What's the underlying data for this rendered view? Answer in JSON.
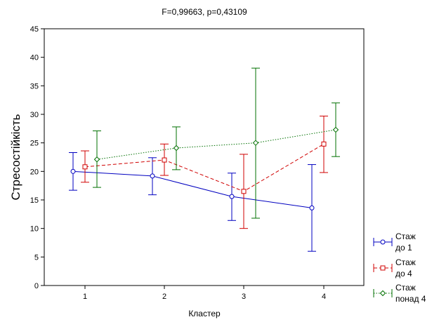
{
  "chart_data": {
    "type": "line",
    "title": "F=0,99663, p=0,43109",
    "xlabel": "Кластер",
    "ylabel": "Стресостійкість",
    "categories": [
      "1",
      "2",
      "3",
      "4"
    ],
    "ylim": [
      0,
      45
    ],
    "yticks": [
      "0",
      "5",
      "10",
      "15",
      "20",
      "25",
      "30",
      "35",
      "40",
      "45"
    ],
    "grid": false,
    "legend_position": "bottom-right",
    "error_bars": true,
    "series": [
      {
        "name": "Стаж до 1",
        "legend_lines": [
          "Стаж",
          "до 1"
        ],
        "color": "#0000c0",
        "marker": "circle",
        "line_style": "solid",
        "values": [
          20.0,
          19.2,
          15.6,
          13.6
        ],
        "lower": [
          16.7,
          15.9,
          11.4,
          6.0
        ],
        "upper": [
          23.3,
          22.4,
          19.7,
          21.2
        ]
      },
      {
        "name": "Стаж до 4",
        "legend_lines": [
          "Стаж",
          "до 4"
        ],
        "color": "#d00000",
        "marker": "square",
        "line_style": "dashed",
        "values": [
          20.8,
          22.0,
          16.5,
          24.8
        ],
        "lower": [
          18.1,
          19.3,
          10.0,
          19.8
        ],
        "upper": [
          23.6,
          24.8,
          23.0,
          29.7
        ]
      },
      {
        "name": "Стаж понад 4",
        "legend_lines": [
          "Стаж",
          "понад 4"
        ],
        "color": "#007000",
        "marker": "diamond",
        "line_style": "dotted",
        "values": [
          22.1,
          24.1,
          25.0,
          27.3
        ],
        "lower": [
          17.2,
          20.3,
          11.8,
          22.6
        ],
        "upper": [
          27.1,
          27.8,
          38.1,
          32.0
        ]
      }
    ]
  }
}
